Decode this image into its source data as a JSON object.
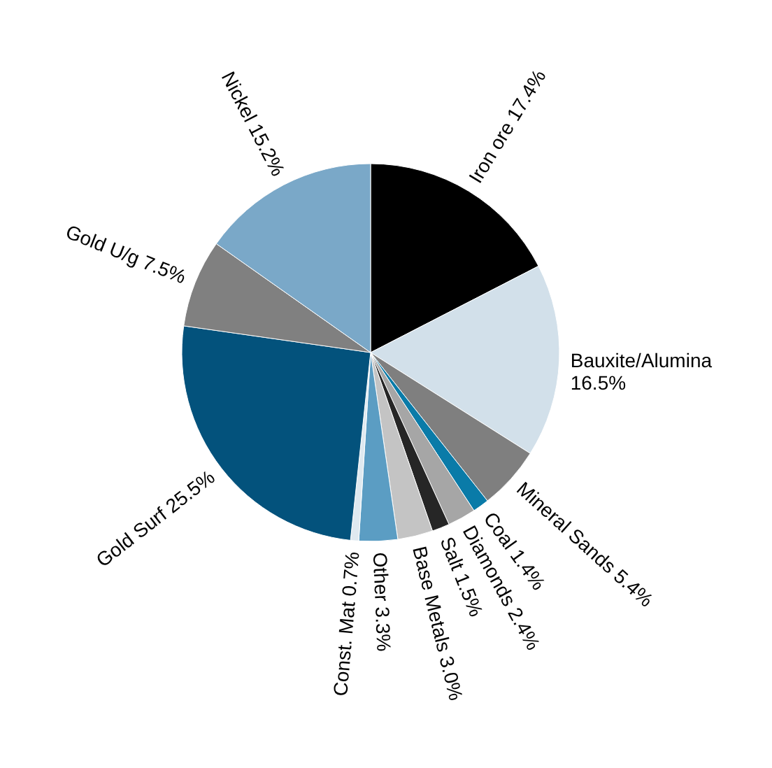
{
  "chart_data": {
    "type": "pie",
    "categories": [
      "Iron ore",
      "Bauxite/Alumina",
      "Mineral Sands",
      "Coal",
      "Diamonds",
      "Salt",
      "Base Metals",
      "Other",
      "Const. Mat",
      "Gold Surf",
      "Gold U/g",
      "Nickel"
    ],
    "values": [
      17.4,
      16.5,
      5.4,
      1.4,
      2.4,
      1.5,
      3.0,
      3.3,
      0.7,
      25.5,
      7.5,
      15.2
    ],
    "colors": [
      "#000000",
      "#d2e0ea",
      "#7f7f7f",
      "#0a7ba8",
      "#a6a6a6",
      "#262626",
      "#c4c4c4",
      "#5b9dc3",
      "#dfe9f0",
      "#03527c",
      "#808080",
      "#7aa8c8"
    ],
    "value_labels": [
      "17.4%",
      "16.5%",
      "5.4%",
      "1.4%",
      "2.4%",
      "1.5%",
      "3.0%",
      "3.3%",
      "0.7%",
      "25.5%",
      "7.5%",
      "15.2%"
    ]
  }
}
